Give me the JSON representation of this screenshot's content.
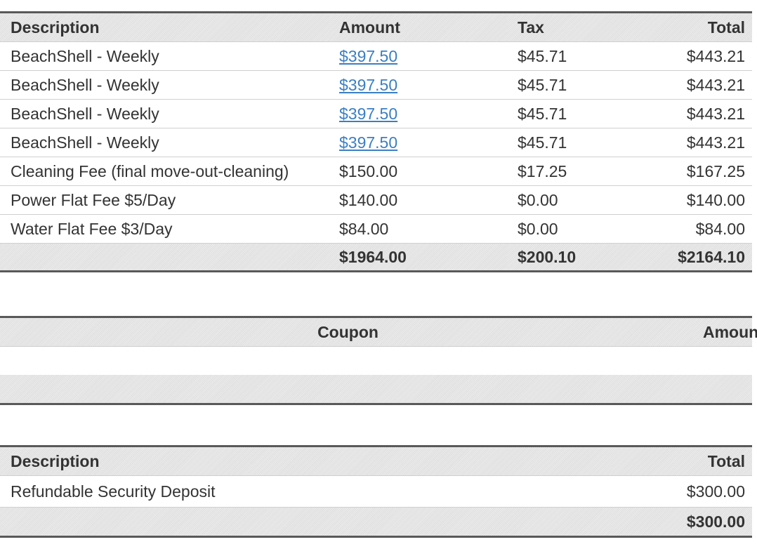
{
  "charges": {
    "headers": {
      "description": "Description",
      "amount": "Amount",
      "tax": "Tax",
      "total": "Total"
    },
    "rows": [
      {
        "description": "BeachShell - Weekly",
        "amount": "$397.50",
        "tax": "$45.71",
        "total": "$443.21"
      },
      {
        "description": "BeachShell - Weekly",
        "amount": "$397.50",
        "tax": "$45.71",
        "total": "$443.21"
      },
      {
        "description": "BeachShell - Weekly",
        "amount": "$397.50",
        "tax": "$45.71",
        "total": "$443.21"
      },
      {
        "description": "BeachShell - Weekly",
        "amount": "$397.50",
        "tax": "$45.71",
        "total": "$443.21"
      },
      {
        "description": "Cleaning Fee (final move-out-cleaning)",
        "amount": "$150.00",
        "tax": "$17.25",
        "total": "$167.25"
      },
      {
        "description": "Power Flat Fee $5/Day",
        "amount": "$140.00",
        "tax": "$0.00",
        "total": "$140.00"
      },
      {
        "description": "Water Flat Fee $3/Day",
        "amount": "$84.00",
        "tax": "$0.00",
        "total": "$84.00"
      }
    ],
    "totals": {
      "amount": "$1964.00",
      "tax": "$200.10",
      "total": "$2164.10"
    }
  },
  "coupons": {
    "headers": {
      "coupon": "Coupon",
      "amount": "Amount"
    }
  },
  "deposits": {
    "headers": {
      "description": "Description",
      "total": "Total"
    },
    "rows": [
      {
        "description": "Refundable Security Deposit",
        "total": "$300.00"
      }
    ],
    "totals": {
      "total": "$300.00"
    }
  }
}
